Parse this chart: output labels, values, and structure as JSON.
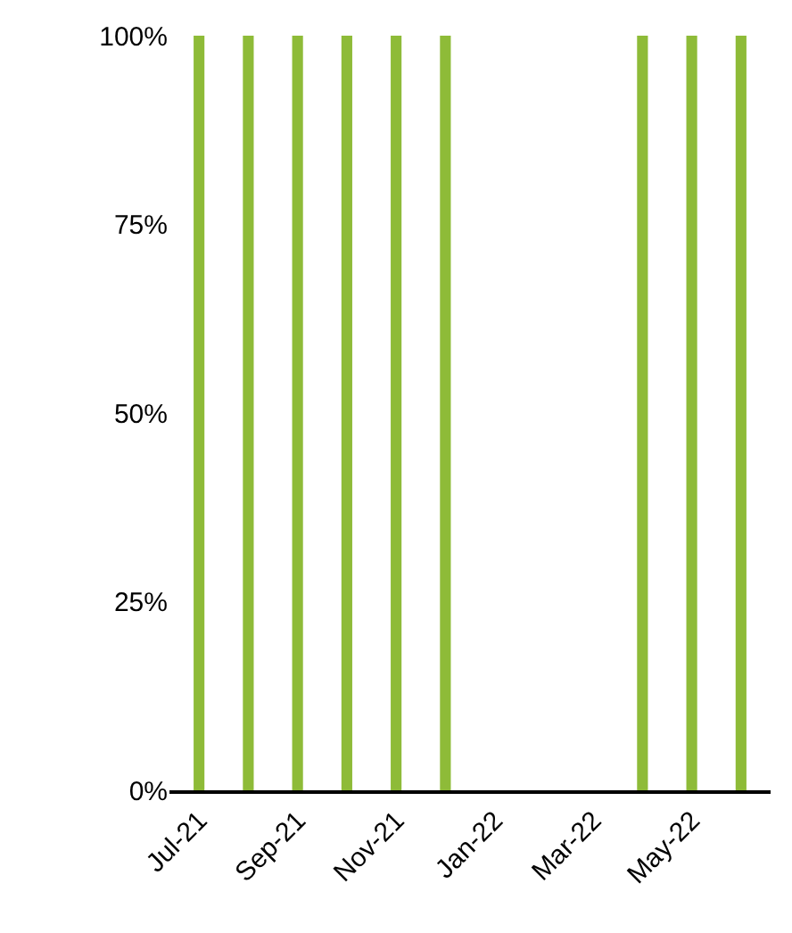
{
  "chart_data": {
    "type": "bar",
    "categories": [
      "Jul-21",
      null,
      "Sep-21",
      null,
      "Nov-21",
      null,
      "Jan-22",
      null,
      "Mar-22",
      null,
      "May-22",
      null
    ],
    "values": [
      100,
      100,
      100,
      100,
      100,
      100,
      0,
      0,
      0,
      100,
      100,
      100
    ],
    "color": "#8ebb38",
    "ylim": [
      0,
      100
    ],
    "yticks": [
      {
        "value": 0,
        "label": "0%"
      },
      {
        "value": 25,
        "label": "25%"
      },
      {
        "value": 50,
        "label": "50%"
      },
      {
        "value": 75,
        "label": "75%"
      },
      {
        "value": 100,
        "label": "100%"
      }
    ]
  }
}
